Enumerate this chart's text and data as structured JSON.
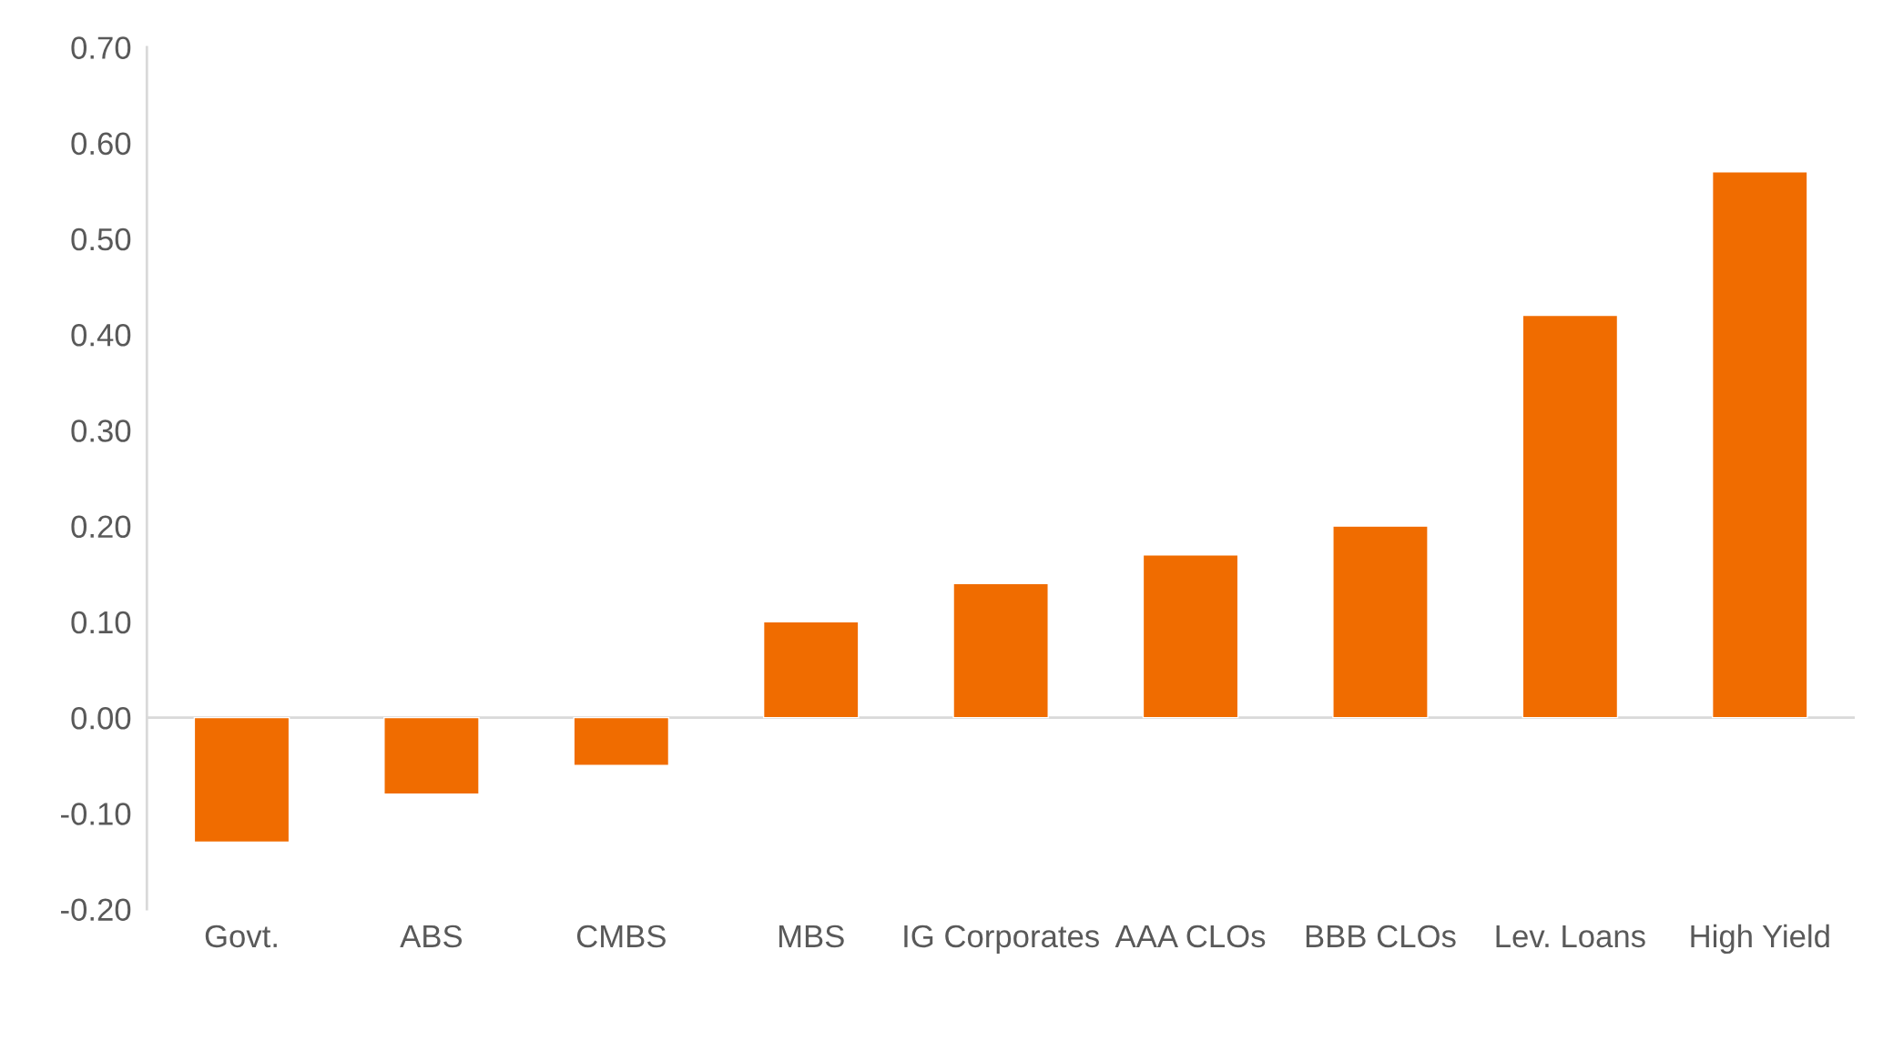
{
  "chart_data": {
    "type": "bar",
    "categories": [
      "Govt.",
      "ABS",
      "CMBS",
      "MBS",
      "IG Corporates",
      "AAA CLOs",
      "BBB CLOs",
      "Lev. Loans",
      "High Yield"
    ],
    "values": [
      -0.13,
      -0.08,
      -0.05,
      0.1,
      0.14,
      0.17,
      0.2,
      0.42,
      0.57
    ],
    "color": "#f06c00",
    "ylim": [
      -0.2,
      0.7
    ],
    "yticks": [
      {
        "value": -0.2,
        "label": "-0.20"
      },
      {
        "value": -0.1,
        "label": "-0.10"
      },
      {
        "value": 0,
        "label": "0.00"
      },
      {
        "value": 0.1,
        "label": "0.10"
      },
      {
        "value": 0.2,
        "label": "0.20"
      },
      {
        "value": 0.3,
        "label": "0.30"
      },
      {
        "value": 0.4,
        "label": "0.40"
      },
      {
        "value": 0.5,
        "label": "0.50"
      },
      {
        "value": 0.6,
        "label": "0.60"
      },
      {
        "value": 0.7,
        "label": "0.70"
      }
    ],
    "ref_lines": [
      {
        "axis": "y",
        "value": 0,
        "color": "#d9d9d9"
      }
    ],
    "grid": false
  }
}
